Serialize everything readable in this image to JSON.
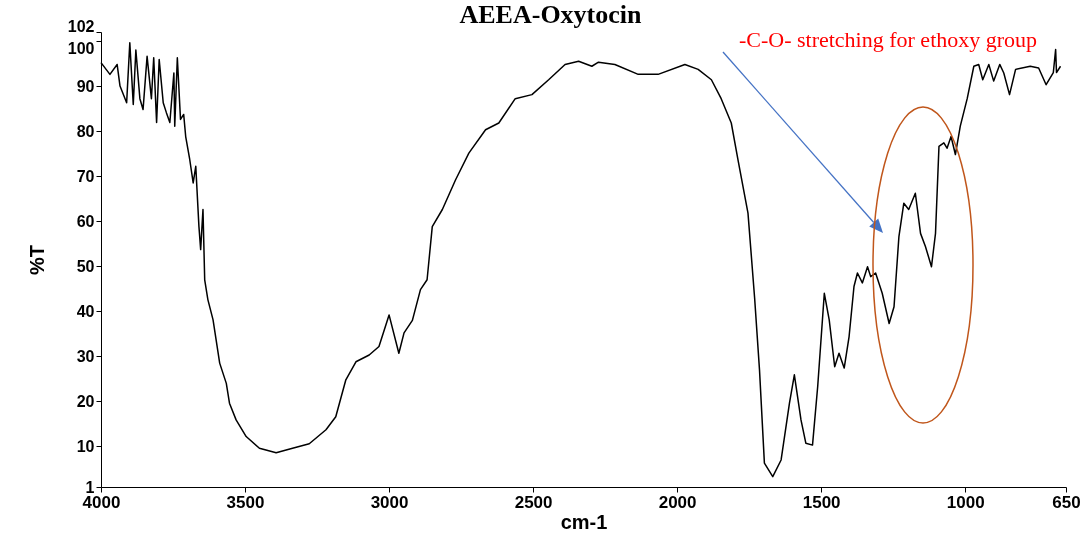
{
  "chart_data": {
    "type": "line",
    "title": "AEEA-Oxytocin",
    "xlabel": "cm-1",
    "ylabel": "%T",
    "color": "#000000",
    "x": [
      4000,
      3969,
      3944,
      3934,
      3911,
      3900,
      3888,
      3879,
      3865,
      3854,
      3840,
      3825,
      3817,
      3807,
      3798,
      3784,
      3773,
      3761,
      3747,
      3744,
      3735,
      3724,
      3713,
      3706,
      3692,
      3680,
      3671,
      3660,
      3654,
      3646,
      3640,
      3629,
      3611,
      3588,
      3565,
      3554,
      3531,
      3496,
      3450,
      3392,
      3335,
      3277,
      3219,
      3185,
      3150,
      3115,
      3069,
      3035,
      3000,
      2966,
      2948,
      2919,
      2891,
      2868,
      2850,
      2815,
      2769,
      2723,
      2665,
      2619,
      2562,
      2504,
      2446,
      2389,
      2342,
      2296,
      2273,
      2216,
      2135,
      2066,
      1973,
      1927,
      1881,
      1847,
      1812,
      1789,
      1754,
      1731,
      1714,
      1697,
      1668,
      1639,
      1610,
      1593,
      1570,
      1553,
      1530,
      1512,
      1489,
      1472,
      1453,
      1438,
      1420,
      1403,
      1386,
      1374,
      1357,
      1339,
      1328,
      1311,
      1288,
      1264,
      1247,
      1230,
      1213,
      1196,
      1173,
      1155,
      1138,
      1117,
      1103,
      1091,
      1074,
      1063,
      1049,
      1034,
      1017,
      993,
      970,
      953,
      939,
      918,
      901,
      880,
      866,
      846,
      825,
      774,
      745,
      719,
      694,
      686,
      683,
      669
    ],
    "values": [
      95.2,
      92.6,
      94.8,
      90,
      86.3,
      99.6,
      85.9,
      98,
      87.2,
      84.8,
      96.6,
      87.2,
      96.3,
      81.9,
      95.9,
      86.3,
      84.1,
      81.9,
      92.9,
      81.1,
      96.3,
      82.6,
      83.7,
      78.8,
      73.7,
      68.5,
      72.2,
      58.8,
      53.7,
      62.6,
      47,
      42.6,
      38.1,
      28.5,
      24,
      19.6,
      15.9,
      12.2,
      9.6,
      8.6,
      9.6,
      10.6,
      13.7,
      16.6,
      24.8,
      28.8,
      30.3,
      32.2,
      39.2,
      30.7,
      35.2,
      38,
      44.8,
      47,
      58.8,
      62.6,
      69.2,
      75.1,
      80.3,
      81.8,
      87.2,
      88.1,
      91.4,
      94.8,
      95.5,
      94.4,
      95.3,
      94.8,
      92.6,
      92.6,
      94.8,
      93.7,
      91.4,
      87.2,
      81.8,
      73.7,
      61.8,
      43,
      27,
      6.3,
      3.3,
      7,
      19.6,
      25.9,
      15.9,
      10.7,
      10.3,
      23.3,
      44,
      38.1,
      27.7,
      30.7,
      27.4,
      34.4,
      45.5,
      48.5,
      46.3,
      49.9,
      47.7,
      48.5,
      44,
      37.3,
      41,
      56.6,
      64,
      62.6,
      66.2,
      57.3,
      54.4,
      49.9,
      57.3,
      76.6,
      77.4,
      76.2,
      78.8,
      74.8,
      81.1,
      87.2,
      94.4,
      94.8,
      91.4,
      94.8,
      91.1,
      94.8,
      92.9,
      88.1,
      93.7,
      94.4,
      94,
      90.3,
      93,
      98.1,
      93,
      94.4
    ],
    "xlim": [
      4000,
      650
    ],
    "xticks": [
      4000,
      3500,
      3000,
      2500,
      2000,
      1500,
      1000,
      650
    ],
    "ylim": [
      1,
      102
    ],
    "yticks": [
      1,
      10,
      20,
      30,
      40,
      50,
      60,
      70,
      80,
      90,
      100,
      102
    ],
    "grid": false,
    "annotations": [
      "-C-O- stretching for ethoxy group"
    ]
  }
}
